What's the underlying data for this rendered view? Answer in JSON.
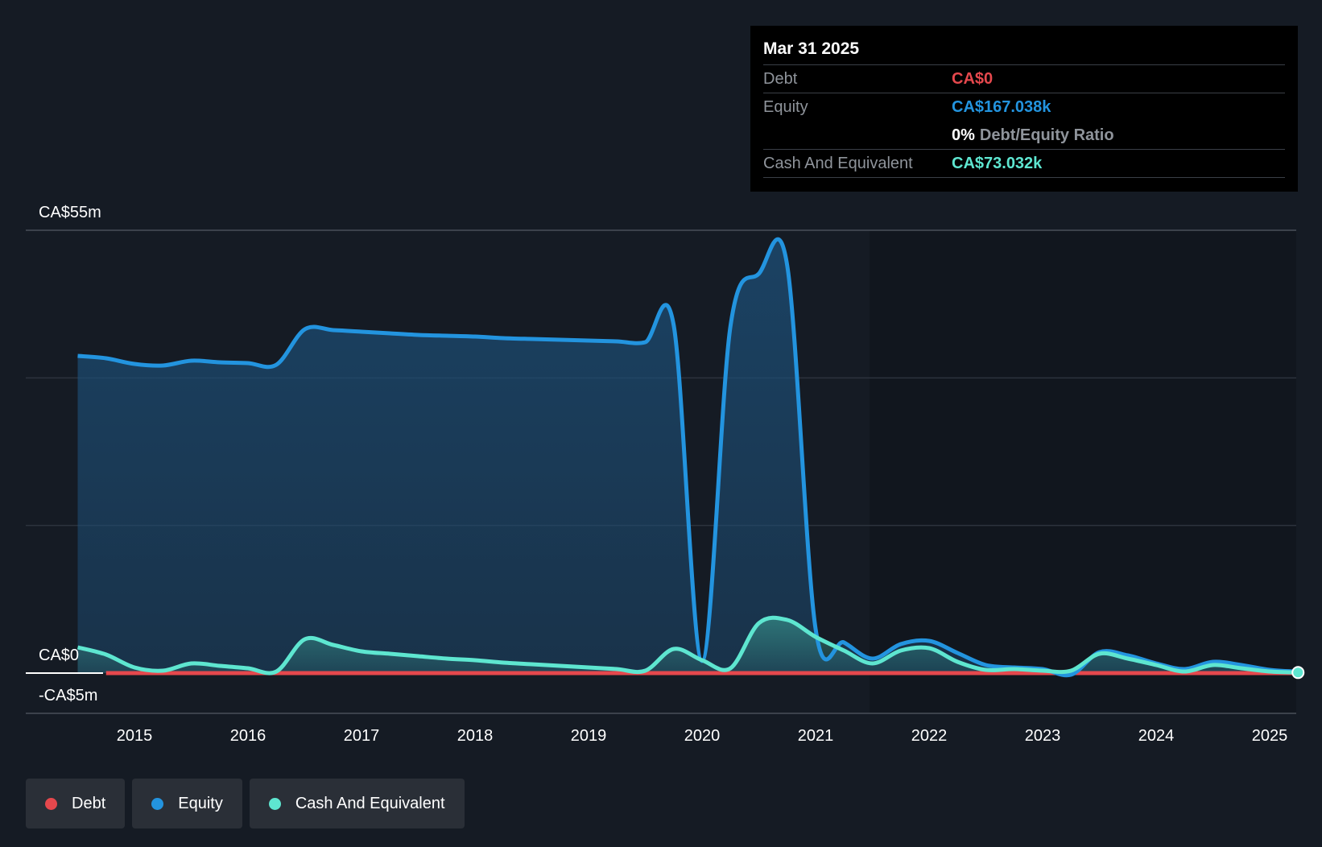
{
  "tooltip": {
    "date": "Mar 31 2025",
    "debt_label": "Debt",
    "debt_value": "CA$0",
    "equity_label": "Equity",
    "equity_value": "CA$167.038k",
    "ratio_value": "0%",
    "ratio_label": "Debt/Equity Ratio",
    "cash_label": "Cash And Equivalent",
    "cash_value": "CA$73.032k"
  },
  "legend": {
    "debt": "Debt",
    "equity": "Equity",
    "cash": "Cash And Equivalent"
  },
  "colors": {
    "background": "#151b24",
    "debt": "#e5484d",
    "equity": "#2394df",
    "cash": "#5ee6d0"
  },
  "chart_data": {
    "type": "area",
    "y_top_label": "CA$55m",
    "y_zero_label": "CA$0",
    "y_bottom_label": "-CA$5m",
    "ylim": [
      -5,
      55
    ],
    "x_ticks": [
      "2015",
      "2016",
      "2017",
      "2018",
      "2019",
      "2020",
      "2021",
      "2022",
      "2023",
      "2024",
      "2025"
    ],
    "series": [
      {
        "name": "Equity",
        "points": [
          [
            2014.5,
            39.4
          ],
          [
            2014.75,
            39.1
          ],
          [
            2015.0,
            38.4
          ],
          [
            2015.25,
            38.2
          ],
          [
            2015.5,
            38.8
          ],
          [
            2015.75,
            38.6
          ],
          [
            2016.0,
            38.5
          ],
          [
            2016.25,
            38.3
          ],
          [
            2016.5,
            42.7
          ],
          [
            2016.75,
            42.6
          ],
          [
            2017.0,
            42.4
          ],
          [
            2017.25,
            42.2
          ],
          [
            2017.5,
            42.0
          ],
          [
            2017.75,
            41.9
          ],
          [
            2018.0,
            41.8
          ],
          [
            2018.25,
            41.6
          ],
          [
            2018.5,
            41.5
          ],
          [
            2018.75,
            41.4
          ],
          [
            2019.0,
            41.3
          ],
          [
            2019.25,
            41.2
          ],
          [
            2019.5,
            41.1
          ],
          [
            2019.75,
            43.2
          ],
          [
            2020.0,
            1.5
          ],
          [
            2020.25,
            43.1
          ],
          [
            2020.5,
            49.6
          ],
          [
            2020.75,
            50.6
          ],
          [
            2021.0,
            5.5
          ],
          [
            2021.25,
            3.8
          ],
          [
            2021.5,
            1.8
          ],
          [
            2021.75,
            3.6
          ],
          [
            2022.0,
            4.0
          ],
          [
            2022.25,
            2.5
          ],
          [
            2022.5,
            1.0
          ],
          [
            2022.75,
            0.7
          ],
          [
            2023.0,
            0.5
          ],
          [
            2023.25,
            -0.2
          ],
          [
            2023.5,
            2.6
          ],
          [
            2023.75,
            2.2
          ],
          [
            2024.0,
            1.2
          ],
          [
            2024.25,
            0.5
          ],
          [
            2024.5,
            1.4
          ],
          [
            2024.75,
            1.0
          ],
          [
            2025.0,
            0.4
          ],
          [
            2025.25,
            0.17
          ]
        ]
      },
      {
        "name": "Cash And Equivalent",
        "points": [
          [
            2014.5,
            3.2
          ],
          [
            2014.75,
            2.3
          ],
          [
            2015.0,
            0.7
          ],
          [
            2015.25,
            0.3
          ],
          [
            2015.5,
            1.2
          ],
          [
            2015.75,
            0.9
          ],
          [
            2016.0,
            0.6
          ],
          [
            2016.25,
            0.2
          ],
          [
            2016.5,
            4.2
          ],
          [
            2016.75,
            3.5
          ],
          [
            2017.0,
            2.7
          ],
          [
            2017.25,
            2.4
          ],
          [
            2017.5,
            2.1
          ],
          [
            2017.75,
            1.8
          ],
          [
            2018.0,
            1.6
          ],
          [
            2018.25,
            1.3
          ],
          [
            2018.5,
            1.1
          ],
          [
            2018.75,
            0.9
          ],
          [
            2019.0,
            0.7
          ],
          [
            2019.25,
            0.5
          ],
          [
            2019.5,
            0.3
          ],
          [
            2019.75,
            3.0
          ],
          [
            2020.0,
            1.6
          ],
          [
            2020.25,
            0.6
          ],
          [
            2020.5,
            6.2
          ],
          [
            2020.75,
            6.6
          ],
          [
            2021.0,
            4.5
          ],
          [
            2021.25,
            2.8
          ],
          [
            2021.5,
            1.2
          ],
          [
            2021.75,
            2.8
          ],
          [
            2022.0,
            3.1
          ],
          [
            2022.25,
            1.4
          ],
          [
            2022.5,
            0.4
          ],
          [
            2022.75,
            0.5
          ],
          [
            2023.0,
            0.3
          ],
          [
            2023.25,
            0.3
          ],
          [
            2023.5,
            2.4
          ],
          [
            2023.75,
            1.8
          ],
          [
            2024.0,
            1.0
          ],
          [
            2024.25,
            0.2
          ],
          [
            2024.5,
            1.0
          ],
          [
            2024.75,
            0.6
          ],
          [
            2025.0,
            0.2
          ],
          [
            2025.25,
            0.07
          ]
        ]
      },
      {
        "name": "Debt",
        "points": [
          [
            2014.75,
            0
          ],
          [
            2025.25,
            0
          ]
        ]
      }
    ]
  }
}
